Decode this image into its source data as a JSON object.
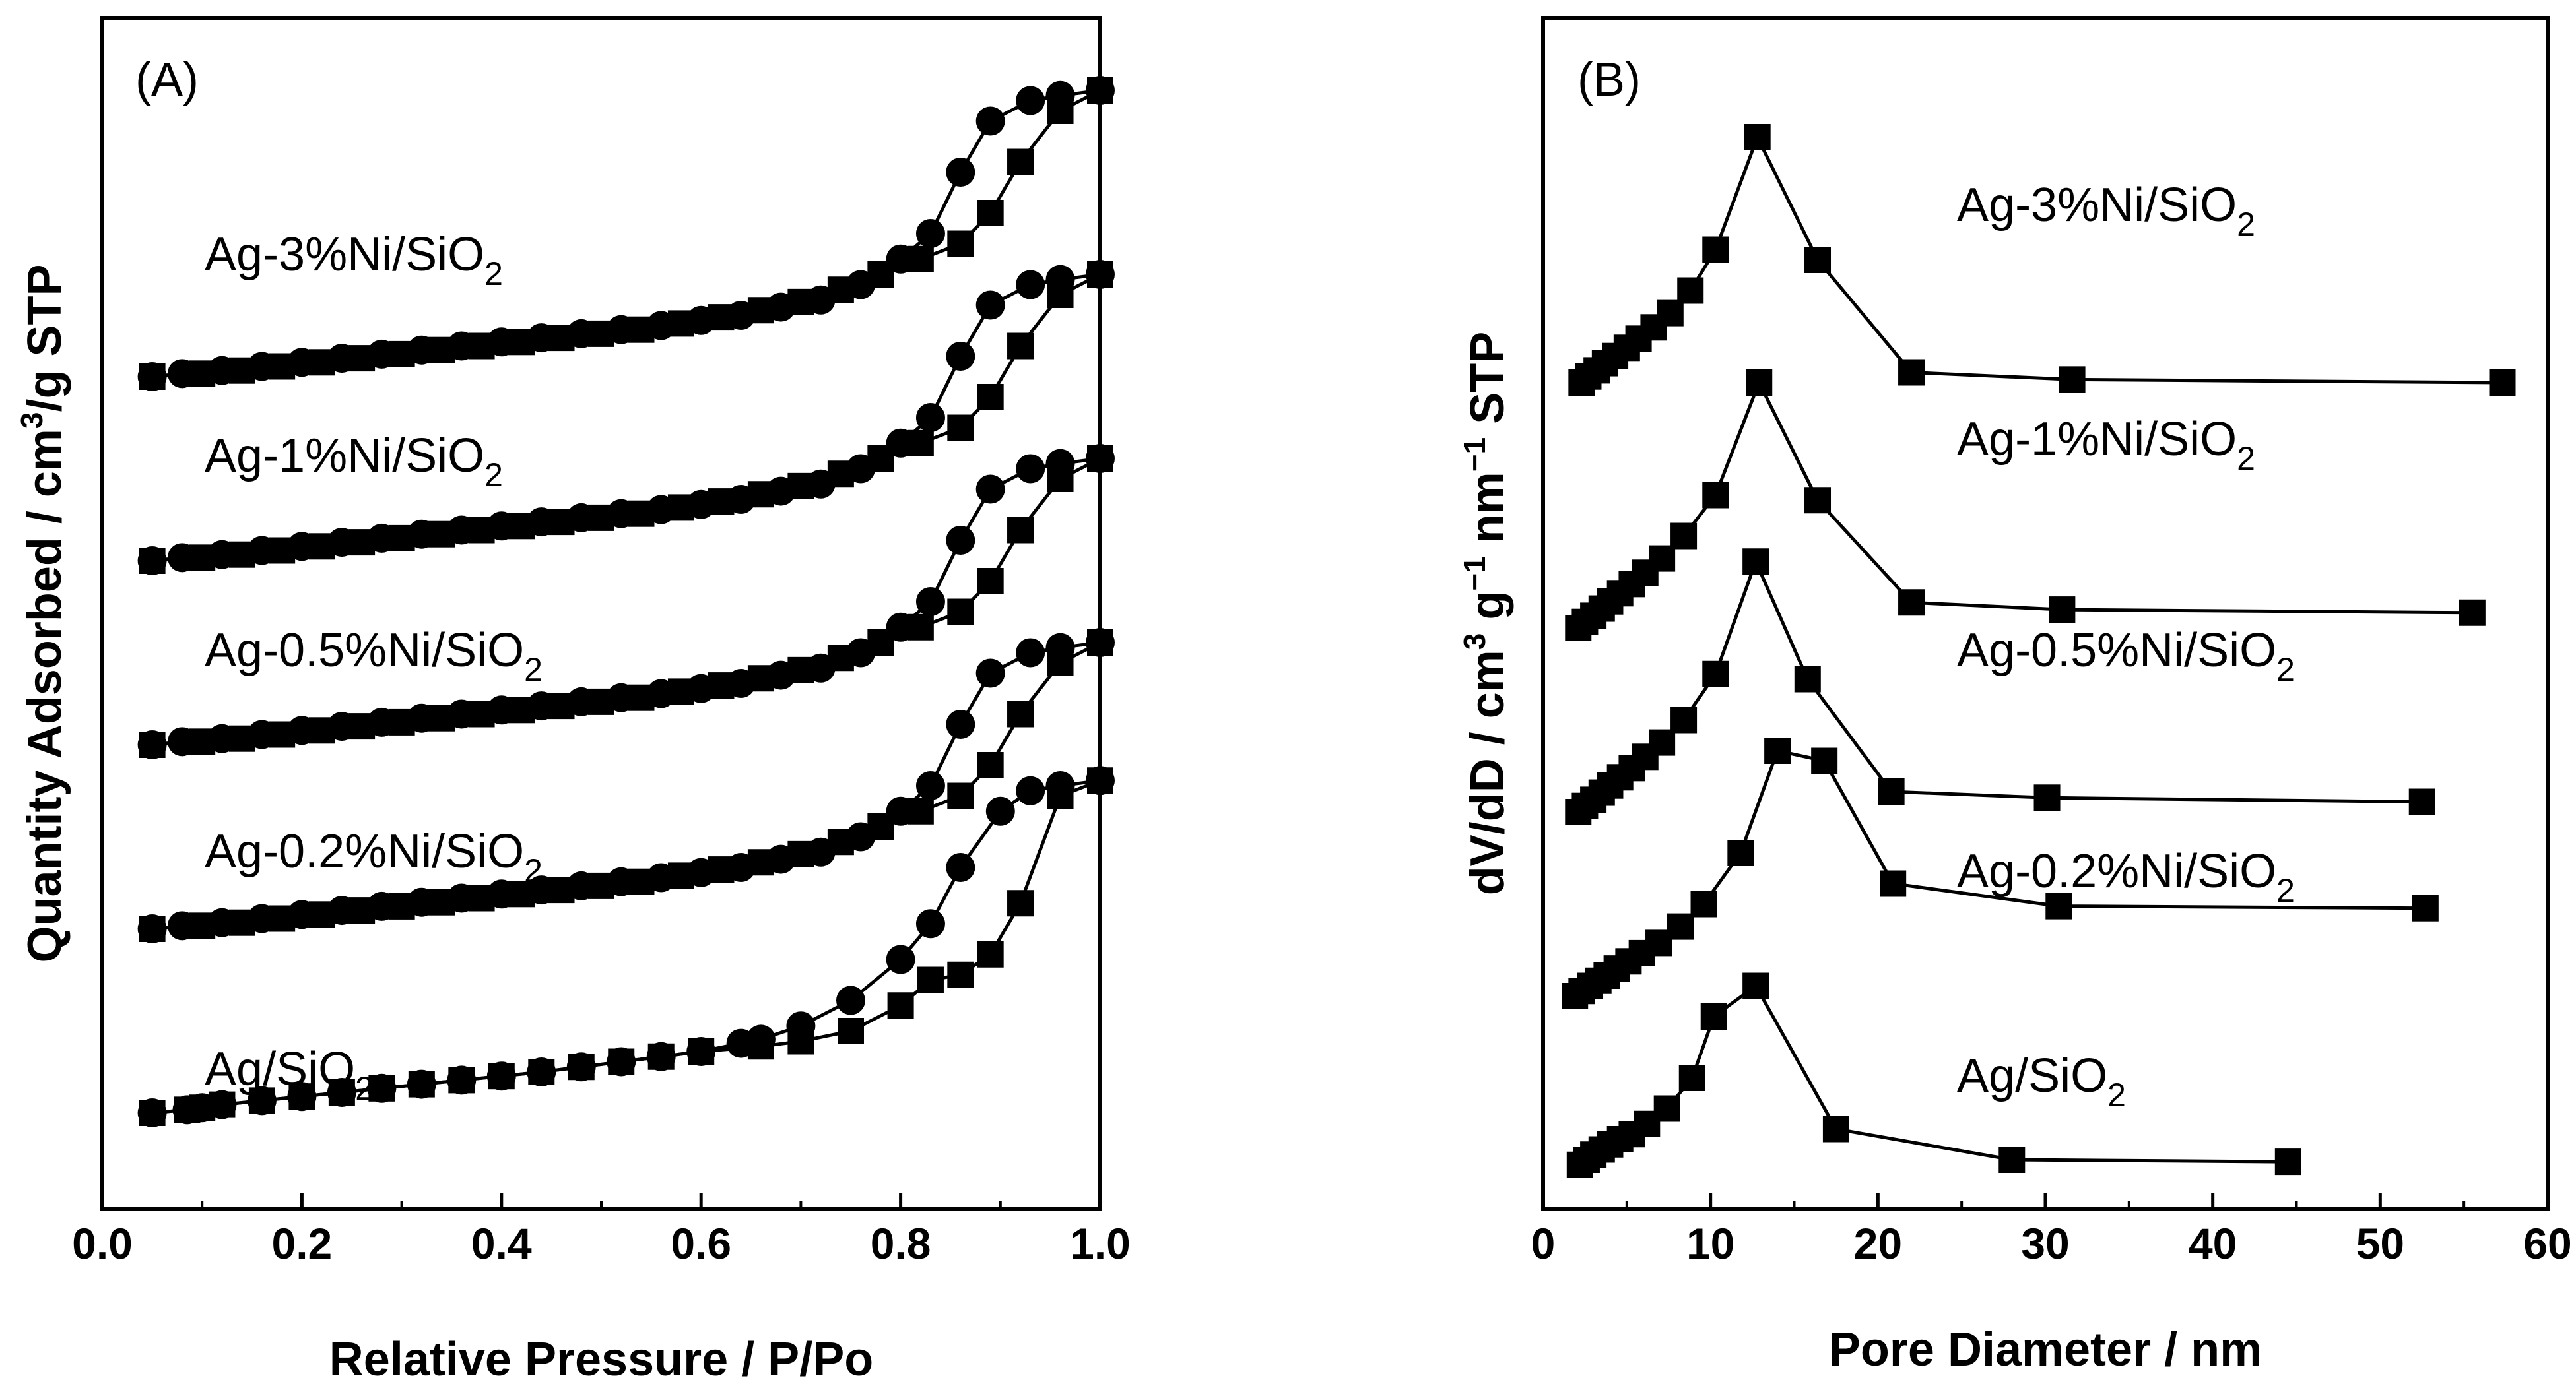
{
  "chart_data": [
    {
      "panel": "(A)",
      "type": "line",
      "xlabel": "Relative Pressure / P/Po",
      "ylabel": "Quantity Adsorbed / cm3/g STP",
      "ylabel_base": "Quantity Adsorbed / cm",
      "ylabel_sup": "3",
      "ylabel_tail": "/g STP",
      "xlim": [
        0.0,
        1.0
      ],
      "ylim": [
        0,
        100
      ],
      "xticks": [
        "0.0",
        "0.2",
        "0.4",
        "0.6",
        "0.8",
        "1.0"
      ],
      "yticks_shown": false,
      "marker_legend": {
        "adsorption": "circle",
        "desorption": "square"
      },
      "series": [
        {
          "name": "Ag/SiO2",
          "label_main": "Ag/SiO",
          "label_sub": "2",
          "adsorption": {
            "x": [
              0.05,
              0.085,
              0.1,
              0.12,
              0.16,
              0.2,
              0.24,
              0.28,
              0.32,
              0.36,
              0.4,
              0.44,
              0.48,
              0.52,
              0.56,
              0.6,
              0.64,
              0.66,
              0.7,
              0.75,
              0.8,
              0.83,
              0.86,
              0.9,
              0.93,
              0.96,
              1.0
            ],
            "y": [
              6,
              6.3,
              6.5,
              6.8,
              7.2,
              7.6,
              8,
              8.4,
              8.8,
              9.2,
              9.6,
              10,
              10.5,
              11,
              11.5,
              12,
              12.8,
              13.2,
              14.5,
              17,
              21,
              24.5,
              30,
              35.5,
              37.5,
              38,
              38.5
            ]
          },
          "desorption": {
            "x": [
              1.0,
              0.96,
              0.92,
              0.89,
              0.86,
              0.83,
              0.8,
              0.75,
              0.7,
              0.66,
              0.6,
              0.56,
              0.52,
              0.48,
              0.44,
              0.4,
              0.36,
              0.32,
              0.28,
              0.24,
              0.2,
              0.16,
              0.12,
              0.1,
              0.085,
              0.05
            ],
            "y": [
              38.5,
              37,
              26.5,
              21.5,
              19.5,
              19,
              16.5,
              14,
              13,
              12.5,
              12,
              11.5,
              11,
              10.5,
              10,
              9.6,
              9.2,
              8.8,
              8.4,
              8,
              7.6,
              7.2,
              6.8,
              6.5,
              6.3,
              6
            ]
          }
        },
        {
          "name": "Ag-0.2%Ni/SiO2",
          "label_main": "Ag-0.2%Ni/SiO",
          "label_sub": "2",
          "adsorption": {
            "x": [
              0.05,
              0.08,
              0.12,
              0.16,
              0.2,
              0.24,
              0.28,
              0.32,
              0.36,
              0.4,
              0.44,
              0.48,
              0.52,
              0.56,
              0.6,
              0.64,
              0.68,
              0.72,
              0.76,
              0.8,
              0.83,
              0.86,
              0.89,
              0.93,
              0.96,
              1.0
            ],
            "y": [
              24,
              24.3,
              24.6,
              25,
              25.4,
              25.8,
              26.2,
              26.6,
              27,
              27.4,
              27.8,
              28.2,
              28.6,
              29,
              29.5,
              30,
              30.8,
              31.5,
              33,
              35.5,
              38,
              44,
              49,
              51,
              51.5,
              52
            ]
          },
          "desorption": {
            "x": [
              1.0,
              0.96,
              0.92,
              0.89,
              0.86,
              0.82,
              0.78,
              0.74,
              0.7,
              0.66,
              0.62,
              0.58,
              0.54,
              0.5,
              0.46,
              0.42,
              0.38,
              0.34,
              0.3,
              0.26,
              0.22,
              0.18,
              0.14,
              0.1,
              0.05
            ],
            "y": [
              52,
              50,
              45,
              40,
              37,
              35.5,
              34,
              32.5,
              31.3,
              30.5,
              29.8,
              29.2,
              28.6,
              28.2,
              27.8,
              27.4,
              27,
              26.6,
              26.2,
              25.8,
              25.4,
              25,
              24.6,
              24.3,
              24
            ]
          }
        },
        {
          "name": "Ag-0.5%Ni/SiO2",
          "label_main": "Ag-0.5%Ni/SiO",
          "label_sub": "2",
          "adsorption": {
            "x": [
              0.05,
              0.08,
              0.12,
              0.16,
              0.2,
              0.24,
              0.28,
              0.32,
              0.36,
              0.4,
              0.44,
              0.48,
              0.52,
              0.56,
              0.6,
              0.64,
              0.68,
              0.72,
              0.76,
              0.8,
              0.83,
              0.86,
              0.89,
              0.93,
              0.96,
              1.0
            ],
            "y": [
              42,
              42.3,
              42.6,
              43,
              43.4,
              43.8,
              44.2,
              44.6,
              45,
              45.4,
              45.8,
              46.2,
              46.6,
              47,
              47.5,
              48,
              48.8,
              49.5,
              51,
              53.5,
              56,
              62,
              67,
              69,
              69.5,
              70
            ]
          },
          "desorption": {
            "x": [
              1.0,
              0.96,
              0.92,
              0.89,
              0.86,
              0.82,
              0.78,
              0.74,
              0.7,
              0.66,
              0.62,
              0.58,
              0.54,
              0.5,
              0.46,
              0.42,
              0.38,
              0.34,
              0.3,
              0.26,
              0.22,
              0.18,
              0.14,
              0.1,
              0.05
            ],
            "y": [
              70,
              68,
              63,
              58,
              55,
              53.5,
              52,
              50.5,
              49.3,
              48.5,
              47.8,
              47.2,
              46.6,
              46.2,
              45.8,
              45.4,
              45,
              44.6,
              44.2,
              43.8,
              43.4,
              43,
              42.6,
              42.3,
              42
            ]
          }
        },
        {
          "name": "Ag-1%Ni/SiO2",
          "label_main": "Ag-1%Ni/SiO",
          "label_sub": "2",
          "adsorption": {
            "x": [
              0.05,
              0.08,
              0.12,
              0.16,
              0.2,
              0.24,
              0.28,
              0.32,
              0.36,
              0.4,
              0.44,
              0.48,
              0.52,
              0.56,
              0.6,
              0.64,
              0.68,
              0.72,
              0.76,
              0.8,
              0.83,
              0.86,
              0.89,
              0.93,
              0.96,
              1.0
            ],
            "y": [
              60,
              60.3,
              60.6,
              61,
              61.4,
              61.8,
              62.2,
              62.6,
              63,
              63.4,
              63.8,
              64.2,
              64.6,
              65,
              65.5,
              66,
              66.8,
              67.5,
              69,
              71.5,
              74,
              80,
              85,
              87,
              87.5,
              88
            ]
          },
          "desorption": {
            "x": [
              1.0,
              0.96,
              0.92,
              0.89,
              0.86,
              0.82,
              0.78,
              0.74,
              0.7,
              0.66,
              0.62,
              0.58,
              0.54,
              0.5,
              0.46,
              0.42,
              0.38,
              0.34,
              0.3,
              0.26,
              0.22,
              0.18,
              0.14,
              0.1,
              0.05
            ],
            "y": [
              88,
              86,
              81,
              76,
              73,
              71.5,
              70,
              68.5,
              67.3,
              66.5,
              65.8,
              65.2,
              64.6,
              64.2,
              63.8,
              63.4,
              63,
              62.6,
              62.2,
              61.8,
              61.4,
              61,
              60.6,
              60.3,
              60
            ]
          }
        },
        {
          "name": "Ag-3%Ni/SiO2",
          "label_main": "Ag-3%Ni/SiO",
          "label_sub": "2",
          "adsorption": {
            "x": [
              0.05,
              0.08,
              0.12,
              0.16,
              0.2,
              0.24,
              0.28,
              0.32,
              0.36,
              0.4,
              0.44,
              0.48,
              0.52,
              0.56,
              0.6,
              0.64,
              0.68,
              0.72,
              0.76,
              0.8,
              0.83,
              0.86,
              0.89,
              0.93,
              0.96,
              1.0
            ],
            "y": [
              78,
              78.3,
              78.6,
              79,
              79.4,
              79.8,
              80.2,
              80.6,
              81,
              81.4,
              81.8,
              82.2,
              82.6,
              83,
              83.5,
              84,
              84.8,
              85.5,
              87,
              89.5,
              92,
              98,
              103,
              105,
              105.5,
              106
            ]
          },
          "desorption": {
            "x": [
              1.0,
              0.96,
              0.92,
              0.89,
              0.86,
              0.82,
              0.78,
              0.74,
              0.7,
              0.66,
              0.62,
              0.58,
              0.54,
              0.5,
              0.46,
              0.42,
              0.38,
              0.34,
              0.3,
              0.26,
              0.22,
              0.18,
              0.14,
              0.1,
              0.05
            ],
            "y": [
              106,
              104,
              99,
              94,
              91,
              89.5,
              88,
              86.5,
              85.3,
              84.5,
              83.8,
              83.2,
              82.6,
              82.2,
              81.8,
              81.4,
              81,
              80.6,
              80.2,
              79.8,
              79.4,
              79,
              78.6,
              78.3,
              78
            ]
          }
        }
      ]
    },
    {
      "panel": "(B)",
      "type": "line",
      "xlabel": "Pore Diameter / nm",
      "ylabel": "dV/dD / cm3 g-1 nm-1 STP",
      "ylabel_a": "dV/dD / cm",
      "ylabel_sup1": "3",
      "ylabel_b": " g",
      "ylabel_sup2": "−1",
      "ylabel_c": " nm",
      "ylabel_sup3": "−1",
      "ylabel_d": " STP",
      "xlim": [
        0,
        60
      ],
      "ylim": [
        0,
        100
      ],
      "xticks": [
        "0",
        "10",
        "20",
        "30",
        "40",
        "50",
        "60"
      ],
      "yticks_shown": false,
      "series": [
        {
          "name": "Ag/SiO2",
          "label_main": "Ag/SiO",
          "label_sub": "2",
          "x": [
            2.2,
            2.6,
            3.0,
            3.5,
            4.0,
            4.6,
            5.3,
            6.2,
            7.4,
            8.9,
            10.2,
            12.7,
            17.5,
            28,
            44.5
          ],
          "y": [
            3.5,
            4,
            4.5,
            5,
            5.5,
            6,
            6.5,
            7.5,
            9,
            12,
            18,
            21,
            7,
            4,
            3.8
          ]
        },
        {
          "name": "Ag-0.2%Ni/SiO2",
          "label_main": "Ag-0.2%Ni/SiO",
          "label_sub": "2",
          "x": [
            1.9,
            2.3,
            2.8,
            3.3,
            3.8,
            4.4,
            5.1,
            5.9,
            6.9,
            8.2,
            9.6,
            11.8,
            14.0,
            16.8,
            20.9,
            30.8,
            52.7
          ],
          "y": [
            20,
            20.5,
            21,
            21.5,
            22,
            22.7,
            23.4,
            24.2,
            25.2,
            26.8,
            29,
            34,
            44,
            43,
            31,
            28.8,
            28.6
          ]
        },
        {
          "name": "Ag-0.5%Ni/SiO2",
          "label_main": "Ag-0.5%Ni/SiO",
          "label_sub": "2",
          "x": [
            2.1,
            2.5,
            3.0,
            3.5,
            4.0,
            4.6,
            5.3,
            6.1,
            7.1,
            8.4,
            10.3,
            12.7,
            15.8,
            20.8,
            30.1,
            52.5
          ],
          "y": [
            38,
            38.6,
            39.2,
            39.9,
            40.6,
            41.4,
            42.3,
            43.4,
            44.8,
            47,
            51.5,
            62.5,
            51,
            40,
            39.4,
            39
          ]
        },
        {
          "name": "Ag-1%Ni/SiO2",
          "label_main": "Ag-1%Ni/SiO",
          "label_sub": "2",
          "x": [
            2.1,
            2.5,
            3.0,
            3.5,
            4.0,
            4.6,
            5.3,
            6.1,
            7.1,
            8.4,
            10.3,
            12.9,
            16.4,
            22.0,
            31.0,
            55.5
          ],
          "y": [
            56,
            56.6,
            57.2,
            57.9,
            58.6,
            59.4,
            60.3,
            61.4,
            62.8,
            65,
            69,
            80,
            68.5,
            58.5,
            57.8,
            57.5
          ]
        },
        {
          "name": "Ag-3%Ni/SiO2",
          "label_main": "Ag-3%Ni/SiO",
          "label_sub": "2",
          "x": [
            2.3,
            2.7,
            3.2,
            3.7,
            4.3,
            5.0,
            5.7,
            6.6,
            7.6,
            8.8,
            10.3,
            12.8,
            16.4,
            22.0,
            31.6,
            57.3
          ],
          "y": [
            80,
            80.6,
            81.2,
            81.9,
            82.6,
            83.4,
            84.3,
            85.4,
            86.8,
            89,
            93,
            104,
            92,
            81,
            80.3,
            80
          ]
        }
      ]
    }
  ]
}
